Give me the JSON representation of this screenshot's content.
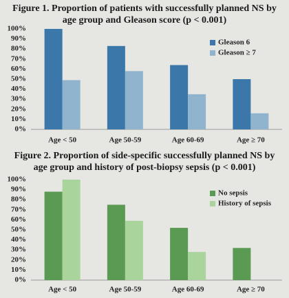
{
  "chart_data": [
    {
      "type": "bar",
      "title": "Figure 1. Proportion of patients with successfully planned NS by age group and Gleason score (p < 0.001)",
      "categories": [
        "Age < 50",
        "Age 50-59",
        "Age 60-69",
        "Age ≥ 70"
      ],
      "series": [
        {
          "name": "Gleason 6",
          "color": "#3b78a9",
          "values": [
            100,
            83,
            64,
            50
          ]
        },
        {
          "name": "Gleason ≥ 7",
          "color": "#90b4cd",
          "values": [
            49,
            58,
            35,
            16
          ]
        }
      ],
      "ylim": [
        0,
        100
      ],
      "yticks": [
        {
          "value": 0,
          "label": "0%"
        },
        {
          "value": 10,
          "label": "10%"
        },
        {
          "value": 20,
          "label": "20%"
        },
        {
          "value": 30,
          "label": "30%"
        },
        {
          "value": 40,
          "label": "40%"
        },
        {
          "value": 50,
          "label": "50%"
        },
        {
          "value": 60,
          "label": "60%"
        },
        {
          "value": 70,
          "label": "70%"
        },
        {
          "value": 80,
          "label": "80%"
        },
        {
          "value": 90,
          "label": "90%"
        },
        {
          "value": 100,
          "label": "100%"
        }
      ],
      "grid": false,
      "legend": "upper right"
    },
    {
      "type": "bar",
      "title": "Figure 2. Proportion of side-specific successfully planned NS by age group and history of post-biopsy sepsis (p < 0.001)",
      "categories": [
        "Age < 50",
        "Age 50-59",
        "Age 60-69",
        "Age ≥ 70"
      ],
      "series": [
        {
          "name": "No sepsis",
          "color": "#5b9a52",
          "values": [
            88,
            75,
            52,
            32
          ]
        },
        {
          "name": "History of sepsis",
          "color": "#a9d49b",
          "values": [
            100,
            59,
            28,
            0
          ]
        }
      ],
      "ylim": [
        0,
        100
      ],
      "yticks": [
        {
          "value": 0,
          "label": "0%"
        },
        {
          "value": 10,
          "label": "10%"
        },
        {
          "value": 20,
          "label": "20%"
        },
        {
          "value": 30,
          "label": "30%"
        },
        {
          "value": 40,
          "label": "40%"
        },
        {
          "value": 50,
          "label": "50%"
        },
        {
          "value": 60,
          "label": "60%"
        },
        {
          "value": 70,
          "label": "70%"
        },
        {
          "value": 80,
          "label": "80%"
        },
        {
          "value": 90,
          "label": "90%"
        },
        {
          "value": 100,
          "label": "100%"
        }
      ],
      "grid": false,
      "legend": "upper right"
    }
  ]
}
